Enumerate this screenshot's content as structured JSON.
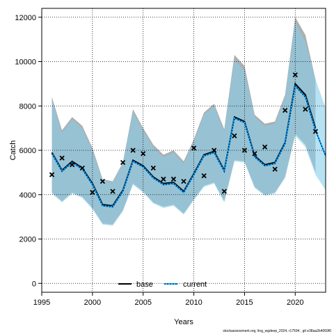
{
  "chart_data": {
    "type": "line",
    "xlabel": "Years",
    "ylabel": "Catch",
    "xlim": [
      1995,
      2023
    ],
    "ylim": [
      -400,
      12400
    ],
    "x_ticks": [
      1995,
      2000,
      2005,
      2010,
      2015,
      2020
    ],
    "y_ticks": [
      0,
      2000,
      4000,
      6000,
      8000,
      10000,
      12000
    ],
    "grid": true,
    "legend_position": "bottom-center",
    "footer": "stockassessment.org, ling_wgdeep_2024, r17594 , git e38aa2b4069f0",
    "observed": {
      "marker": "x",
      "color": "#000000",
      "x": [
        1996,
        1997,
        1998,
        1999,
        2000,
        2001,
        2002,
        2003,
        2004,
        2005,
        2006,
        2007,
        2008,
        2009,
        2010,
        2011,
        2012,
        2013,
        2014,
        2015,
        2016,
        2017,
        2018,
        2019,
        2020,
        2021,
        2022
      ],
      "y": [
        4900,
        5650,
        5350,
        5200,
        4100,
        4600,
        4150,
        5450,
        6000,
        5850,
        5200,
        4700,
        4700,
        4600,
        6100,
        4850,
        6000,
        4150,
        6650,
        6000,
        5850,
        6150,
        5150,
        7800,
        9400,
        7850,
        6850
      ]
    },
    "series": [
      {
        "name": "base",
        "color": "#000000",
        "band_color": "#a0a0a0",
        "x": [
          1996,
          1997,
          1998,
          1999,
          2000,
          2001,
          2002,
          2003,
          2004,
          2005,
          2006,
          2007,
          2008,
          2009,
          2010,
          2011,
          2012,
          2013,
          2014,
          2015,
          2016,
          2017,
          2018,
          2019,
          2020,
          2021,
          2022
        ],
        "y": [
          5900,
          5100,
          5500,
          5200,
          4500,
          3550,
          3500,
          4200,
          5550,
          5300,
          4800,
          4500,
          4550,
          4150,
          4950,
          5800,
          5950,
          5100,
          7500,
          7300,
          5750,
          5350,
          5450,
          6350,
          9000,
          8500,
          7000
        ],
        "lower": [
          4100,
          3700,
          4100,
          3900,
          3400,
          2700,
          2650,
          3300,
          4500,
          4150,
          3650,
          3450,
          3550,
          3150,
          3800,
          4400,
          4550,
          3700,
          5550,
          5500,
          4350,
          4000,
          4100,
          4800,
          6750,
          6250,
          5000
        ],
        "upper": [
          8400,
          6900,
          7500,
          7100,
          6100,
          4700,
          4600,
          5450,
          7850,
          7000,
          6250,
          5800,
          6000,
          5500,
          6500,
          7700,
          8100,
          6950,
          10300,
          9800,
          7600,
          7200,
          7300,
          8500,
          12000,
          11200,
          9200
        ]
      },
      {
        "name": "current",
        "color": "#1a237e",
        "band_color": "#87ceeb",
        "x": [
          1996,
          1997,
          1998,
          1999,
          2000,
          2001,
          2002,
          2003,
          2004,
          2005,
          2006,
          2007,
          2008,
          2009,
          2010,
          2011,
          2012,
          2013,
          2014,
          2015,
          2016,
          2017,
          2018,
          2019,
          2020,
          2021,
          2022,
          2023
        ],
        "y": [
          5850,
          5050,
          5450,
          5150,
          4450,
          3500,
          3450,
          4150,
          5500,
          5250,
          4750,
          4450,
          4500,
          4100,
          4900,
          5750,
          5900,
          5050,
          7450,
          7250,
          5700,
          5300,
          5400,
          6300,
          8900,
          8400,
          6900,
          5750
        ],
        "lower": [
          4050,
          3650,
          4050,
          3850,
          3350,
          2650,
          2600,
          3250,
          4450,
          4100,
          3600,
          3400,
          3500,
          3100,
          3750,
          4350,
          4500,
          3650,
          5500,
          5450,
          4300,
          3950,
          4050,
          4750,
          6650,
          6150,
          4900,
          4200
        ],
        "upper": [
          8300,
          6800,
          7400,
          7000,
          6000,
          4650,
          4550,
          5400,
          7750,
          6900,
          6150,
          5700,
          5900,
          5400,
          6400,
          7600,
          8000,
          6850,
          10100,
          9600,
          7500,
          7100,
          7200,
          8400,
          11800,
          10900,
          9200,
          7900
        ]
      }
    ]
  }
}
